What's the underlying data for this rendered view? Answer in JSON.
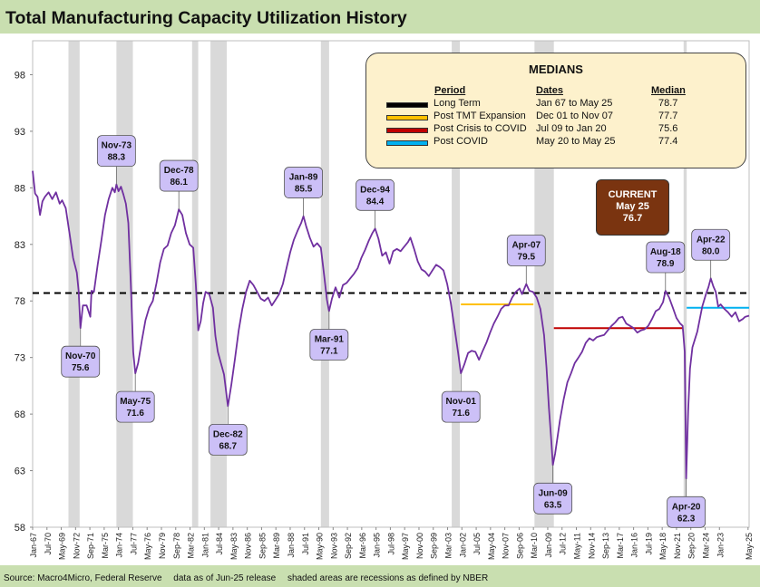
{
  "title": "Total Manufacturing Capacity Utilization History",
  "footer": {
    "source": "Source: Macro4Micro, Federal Reserve",
    "note1": "data as of Jun-25 release",
    "note2": "shaded areas are recessions as defined by NBER"
  },
  "medians": {
    "title": "MEDIANS",
    "headers": {
      "period": "Period",
      "dates": "Dates",
      "median": "Median"
    },
    "rows": [
      {
        "period": "Long Term",
        "dates": "Jan 67 to May 25",
        "median": "78.7",
        "color": "#000000"
      },
      {
        "period": "Post TMT Expansion",
        "dates": "Dec 01 to Nov 07",
        "median": "77.7",
        "color": "#ffc000"
      },
      {
        "period": "Post Crisis to COVID",
        "dates": "Jul 09 to Jan 20",
        "median": "75.6",
        "color": "#c00000"
      },
      {
        "period": "Post COVID",
        "dates": "May 20 to May 25",
        "median": "77.4",
        "color": "#00b0f0"
      }
    ]
  },
  "current": {
    "label": "CURRENT",
    "date": "May 25",
    "value": "76.7"
  },
  "colors": {
    "line": "#7030a0",
    "recession": "#d9d9d9",
    "callout": "#ccc0f7",
    "background": "#c9dfb0"
  },
  "chart_data": {
    "type": "line",
    "title": "Total Manufacturing Capacity Utilization History",
    "ylim": [
      58,
      101
    ],
    "yticks": [
      58,
      63,
      68,
      73,
      78,
      83,
      88,
      93,
      98
    ],
    "xlim": [
      1967.0,
      2025.42
    ],
    "x_tick_start": 1967.0,
    "x_tick_step_months": 28,
    "x_ticks": [
      "Jan-67",
      "May-69",
      "Sep-71",
      "Jan-74",
      "May-76",
      "Sep-78",
      "Jan-81",
      "May-83",
      "Sep-85",
      "Jan-88",
      "May-90",
      "Sep-92",
      "Jan-95",
      "May-97",
      "Sep-99",
      "Jan-02",
      "May-04",
      "Sep-06",
      "Jan-09",
      "May-11",
      "Sep-13",
      "Jan-16",
      "May-18",
      "Sep-20",
      "Jan-23",
      "May-25"
    ],
    "x_ticks_lower": [
      "Jul-70",
      "Nov-72",
      "Mar-75",
      "Jul-77",
      "Nov-79",
      "Mar-82",
      "Jul-84",
      "Nov-86",
      "Mar-89",
      "Jul-91",
      "Nov-93",
      "Mar-96",
      "Jul-98",
      "Nov-00",
      "Mar-03",
      "Jul-05",
      "Nov-07",
      "Mar-10",
      "Jul-12",
      "Nov-14",
      "Mar-17",
      "Jul-19",
      "Nov-21",
      "Mar-24"
    ],
    "recessions": [
      [
        1969.92,
        1970.83
      ],
      [
        1973.83,
        1975.17
      ],
      [
        1980.0,
        1980.5
      ],
      [
        1981.5,
        1982.83
      ],
      [
        1990.5,
        1991.17
      ],
      [
        2001.17,
        2001.83
      ],
      [
        2007.92,
        2009.5
      ],
      [
        2020.08,
        2020.33
      ]
    ],
    "series": [
      {
        "name": "Total Manufacturing Capacity Utilization",
        "points": [
          [
            1967.0,
            89.5
          ],
          [
            1967.2,
            87.5
          ],
          [
            1967.4,
            87.2
          ],
          [
            1967.6,
            85.6
          ],
          [
            1967.8,
            86.8
          ],
          [
            1968.0,
            87.2
          ],
          [
            1968.3,
            87.6
          ],
          [
            1968.6,
            87.0
          ],
          [
            1968.9,
            87.6
          ],
          [
            1969.2,
            86.6
          ],
          [
            1969.4,
            86.9
          ],
          [
            1969.7,
            86.2
          ],
          [
            1970.0,
            84.0
          ],
          [
            1970.3,
            81.8
          ],
          [
            1970.6,
            80.5
          ],
          [
            1970.75,
            78.9
          ],
          [
            1970.9,
            75.6
          ],
          [
            1971.1,
            77.6
          ],
          [
            1971.4,
            77.6
          ],
          [
            1971.7,
            76.6
          ],
          [
            1971.8,
            78.9
          ],
          [
            1972.0,
            78.8
          ],
          [
            1972.3,
            81.2
          ],
          [
            1972.6,
            83.3
          ],
          [
            1972.9,
            85.6
          ],
          [
            1973.2,
            87.0
          ],
          [
            1973.5,
            88.0
          ],
          [
            1973.7,
            87.6
          ],
          [
            1973.83,
            88.3
          ],
          [
            1974.0,
            87.7
          ],
          [
            1974.2,
            88.1
          ],
          [
            1974.4,
            87.4
          ],
          [
            1974.6,
            86.6
          ],
          [
            1974.8,
            84.9
          ],
          [
            1975.0,
            79.6
          ],
          [
            1975.2,
            73.5
          ],
          [
            1975.37,
            71.6
          ],
          [
            1975.6,
            72.5
          ],
          [
            1975.9,
            74.5
          ],
          [
            1976.2,
            76.3
          ],
          [
            1976.5,
            77.4
          ],
          [
            1976.8,
            78.0
          ],
          [
            1977.1,
            79.6
          ],
          [
            1977.4,
            81.4
          ],
          [
            1977.7,
            82.6
          ],
          [
            1978.0,
            82.9
          ],
          [
            1978.3,
            84.0
          ],
          [
            1978.6,
            84.7
          ],
          [
            1978.92,
            86.1
          ],
          [
            1979.2,
            85.6
          ],
          [
            1979.5,
            84.0
          ],
          [
            1979.8,
            83.0
          ],
          [
            1980.1,
            82.7
          ],
          [
            1980.3,
            79.5
          ],
          [
            1980.5,
            75.4
          ],
          [
            1980.7,
            76.2
          ],
          [
            1980.9,
            77.8
          ],
          [
            1981.1,
            78.8
          ],
          [
            1981.4,
            78.6
          ],
          [
            1981.7,
            77.4
          ],
          [
            1981.9,
            74.9
          ],
          [
            1982.1,
            73.5
          ],
          [
            1982.3,
            72.7
          ],
          [
            1982.6,
            71.5
          ],
          [
            1982.92,
            68.7
          ],
          [
            1983.2,
            70.6
          ],
          [
            1983.5,
            72.9
          ],
          [
            1983.8,
            75.4
          ],
          [
            1984.1,
            77.3
          ],
          [
            1984.4,
            78.8
          ],
          [
            1984.7,
            79.8
          ],
          [
            1985.0,
            79.4
          ],
          [
            1985.3,
            78.8
          ],
          [
            1985.6,
            78.2
          ],
          [
            1985.9,
            78.0
          ],
          [
            1986.2,
            78.3
          ],
          [
            1986.5,
            77.6
          ],
          [
            1986.8,
            78.1
          ],
          [
            1987.1,
            78.6
          ],
          [
            1987.4,
            79.5
          ],
          [
            1987.7,
            80.9
          ],
          [
            1988.0,
            82.3
          ],
          [
            1988.3,
            83.4
          ],
          [
            1988.6,
            84.2
          ],
          [
            1988.9,
            84.9
          ],
          [
            1989.08,
            85.5
          ],
          [
            1989.3,
            84.6
          ],
          [
            1989.6,
            83.6
          ],
          [
            1989.9,
            82.8
          ],
          [
            1990.2,
            83.1
          ],
          [
            1990.5,
            82.7
          ],
          [
            1990.8,
            80.0
          ],
          [
            1991.0,
            78.1
          ],
          [
            1991.17,
            77.1
          ],
          [
            1991.4,
            78.2
          ],
          [
            1991.7,
            79.2
          ],
          [
            1992.0,
            78.3
          ],
          [
            1992.3,
            79.4
          ],
          [
            1992.6,
            79.6
          ],
          [
            1992.9,
            80.0
          ],
          [
            1993.2,
            80.4
          ],
          [
            1993.5,
            80.9
          ],
          [
            1993.8,
            81.8
          ],
          [
            1994.1,
            82.5
          ],
          [
            1994.4,
            83.3
          ],
          [
            1994.7,
            84.0
          ],
          [
            1994.92,
            84.4
          ],
          [
            1995.2,
            83.5
          ],
          [
            1995.5,
            82.0
          ],
          [
            1995.8,
            82.3
          ],
          [
            1996.1,
            81.3
          ],
          [
            1996.4,
            82.4
          ],
          [
            1996.7,
            82.6
          ],
          [
            1997.0,
            82.4
          ],
          [
            1997.3,
            82.8
          ],
          [
            1997.6,
            83.2
          ],
          [
            1997.8,
            83.6
          ],
          [
            1998.1,
            82.6
          ],
          [
            1998.4,
            81.5
          ],
          [
            1998.7,
            80.8
          ],
          [
            1999.0,
            80.6
          ],
          [
            1999.3,
            80.2
          ],
          [
            1999.6,
            80.7
          ],
          [
            1999.9,
            81.2
          ],
          [
            2000.2,
            81.0
          ],
          [
            2000.5,
            80.7
          ],
          [
            2000.8,
            79.5
          ],
          [
            2001.1,
            77.8
          ],
          [
            2001.4,
            75.6
          ],
          [
            2001.7,
            73.4
          ],
          [
            2001.92,
            71.6
          ],
          [
            2002.2,
            72.4
          ],
          [
            2002.5,
            73.4
          ],
          [
            2002.8,
            73.6
          ],
          [
            2003.1,
            73.5
          ],
          [
            2003.4,
            72.8
          ],
          [
            2003.7,
            73.6
          ],
          [
            2004.0,
            74.3
          ],
          [
            2004.3,
            75.2
          ],
          [
            2004.6,
            76.0
          ],
          [
            2004.9,
            76.6
          ],
          [
            2005.2,
            77.3
          ],
          [
            2005.5,
            77.6
          ],
          [
            2005.8,
            77.6
          ],
          [
            2006.1,
            78.3
          ],
          [
            2006.4,
            78.8
          ],
          [
            2006.7,
            79.1
          ],
          [
            2006.9,
            78.6
          ],
          [
            2007.25,
            79.5
          ],
          [
            2007.5,
            78.9
          ],
          [
            2007.8,
            78.8
          ],
          [
            2008.1,
            78.3
          ],
          [
            2008.4,
            77.3
          ],
          [
            2008.7,
            75.0
          ],
          [
            2008.9,
            72.1
          ],
          [
            2009.1,
            68.5
          ],
          [
            2009.3,
            65.5
          ],
          [
            2009.42,
            63.5
          ],
          [
            2009.6,
            64.5
          ],
          [
            2009.8,
            66.0
          ],
          [
            2010.0,
            67.5
          ],
          [
            2010.3,
            69.3
          ],
          [
            2010.6,
            70.8
          ],
          [
            2010.9,
            71.6
          ],
          [
            2011.2,
            72.5
          ],
          [
            2011.5,
            73.0
          ],
          [
            2011.8,
            73.5
          ],
          [
            2012.1,
            74.3
          ],
          [
            2012.4,
            74.7
          ],
          [
            2012.7,
            74.5
          ],
          [
            2013.0,
            74.8
          ],
          [
            2013.3,
            74.9
          ],
          [
            2013.6,
            75.0
          ],
          [
            2013.9,
            75.4
          ],
          [
            2014.2,
            75.8
          ],
          [
            2014.5,
            76.1
          ],
          [
            2014.8,
            76.5
          ],
          [
            2015.1,
            76.6
          ],
          [
            2015.4,
            76.0
          ],
          [
            2015.7,
            75.8
          ],
          [
            2016.0,
            75.6
          ],
          [
            2016.3,
            75.2
          ],
          [
            2016.6,
            75.4
          ],
          [
            2016.9,
            75.5
          ],
          [
            2017.2,
            75.8
          ],
          [
            2017.5,
            76.4
          ],
          [
            2017.8,
            77.1
          ],
          [
            2018.1,
            77.3
          ],
          [
            2018.4,
            77.9
          ],
          [
            2018.6,
            78.9
          ],
          [
            2018.9,
            78.3
          ],
          [
            2019.2,
            77.4
          ],
          [
            2019.5,
            76.5
          ],
          [
            2019.8,
            76.0
          ],
          [
            2020.0,
            75.8
          ],
          [
            2020.17,
            73.5
          ],
          [
            2020.29,
            62.3
          ],
          [
            2020.45,
            68.3
          ],
          [
            2020.6,
            72.0
          ],
          [
            2020.8,
            73.9
          ],
          [
            2021.0,
            74.6
          ],
          [
            2021.2,
            75.3
          ],
          [
            2021.4,
            76.4
          ],
          [
            2021.6,
            77.5
          ],
          [
            2021.9,
            78.6
          ],
          [
            2022.1,
            79.2
          ],
          [
            2022.29,
            80.0
          ],
          [
            2022.5,
            79.3
          ],
          [
            2022.7,
            78.8
          ],
          [
            2022.9,
            77.5
          ],
          [
            2023.1,
            77.7
          ],
          [
            2023.4,
            77.3
          ],
          [
            2023.7,
            77.0
          ],
          [
            2024.0,
            76.6
          ],
          [
            2024.3,
            77.0
          ],
          [
            2024.6,
            76.2
          ],
          [
            2024.9,
            76.4
          ],
          [
            2025.1,
            76.6
          ],
          [
            2025.42,
            76.7
          ]
        ]
      }
    ],
    "medians": [
      {
        "name": "Long Term",
        "value": 78.7,
        "x": [
          1967.0,
          2025.42
        ],
        "color": "#000000",
        "dashed": true
      },
      {
        "name": "Post TMT Expansion",
        "value": 77.7,
        "x": [
          2001.92,
          2007.83
        ],
        "color": "#ffc000"
      },
      {
        "name": "Post Crisis to COVID",
        "value": 75.6,
        "x": [
          2009.5,
          2020.0
        ],
        "color": "#c00000"
      },
      {
        "name": "Post COVID",
        "value": 77.4,
        "x": [
          2020.33,
          2025.42
        ],
        "color": "#00b0f0"
      }
    ],
    "annotations": [
      {
        "date": "Nov-70",
        "value": "75.6",
        "x": 1970.9,
        "y": 75.6,
        "pos": "below"
      },
      {
        "date": "Nov-73",
        "value": "88.3",
        "x": 1973.83,
        "y": 88.3,
        "pos": "above"
      },
      {
        "date": "May-75",
        "value": "71.6",
        "x": 1975.37,
        "y": 71.6,
        "pos": "below"
      },
      {
        "date": "Dec-78",
        "value": "86.1",
        "x": 1978.92,
        "y": 86.1,
        "pos": "above"
      },
      {
        "date": "Dec-82",
        "value": "68.7",
        "x": 1982.92,
        "y": 68.7,
        "pos": "below"
      },
      {
        "date": "Jan-89",
        "value": "85.5",
        "x": 1989.08,
        "y": 85.5,
        "pos": "above"
      },
      {
        "date": "Mar-91",
        "value": "77.1",
        "x": 1991.17,
        "y": 77.1,
        "pos": "below"
      },
      {
        "date": "Dec-94",
        "value": "84.4",
        "x": 1994.92,
        "y": 84.4,
        "pos": "above"
      },
      {
        "date": "Nov-01",
        "value": "71.6",
        "x": 2001.92,
        "y": 71.6,
        "pos": "below"
      },
      {
        "date": "Apr-07",
        "value": "79.5",
        "x": 2007.25,
        "y": 79.5,
        "pos": "above"
      },
      {
        "date": "Jun-09",
        "value": "63.5",
        "x": 2009.42,
        "y": 63.5,
        "pos": "below"
      },
      {
        "date": "Aug-18",
        "value": "78.9",
        "x": 2018.6,
        "y": 78.9,
        "pos": "above"
      },
      {
        "date": "Apr-20",
        "value": "62.3",
        "x": 2020.29,
        "y": 62.3,
        "pos": "below"
      },
      {
        "date": "Apr-22",
        "value": "80.0",
        "x": 2022.29,
        "y": 80.0,
        "pos": "above"
      }
    ]
  }
}
